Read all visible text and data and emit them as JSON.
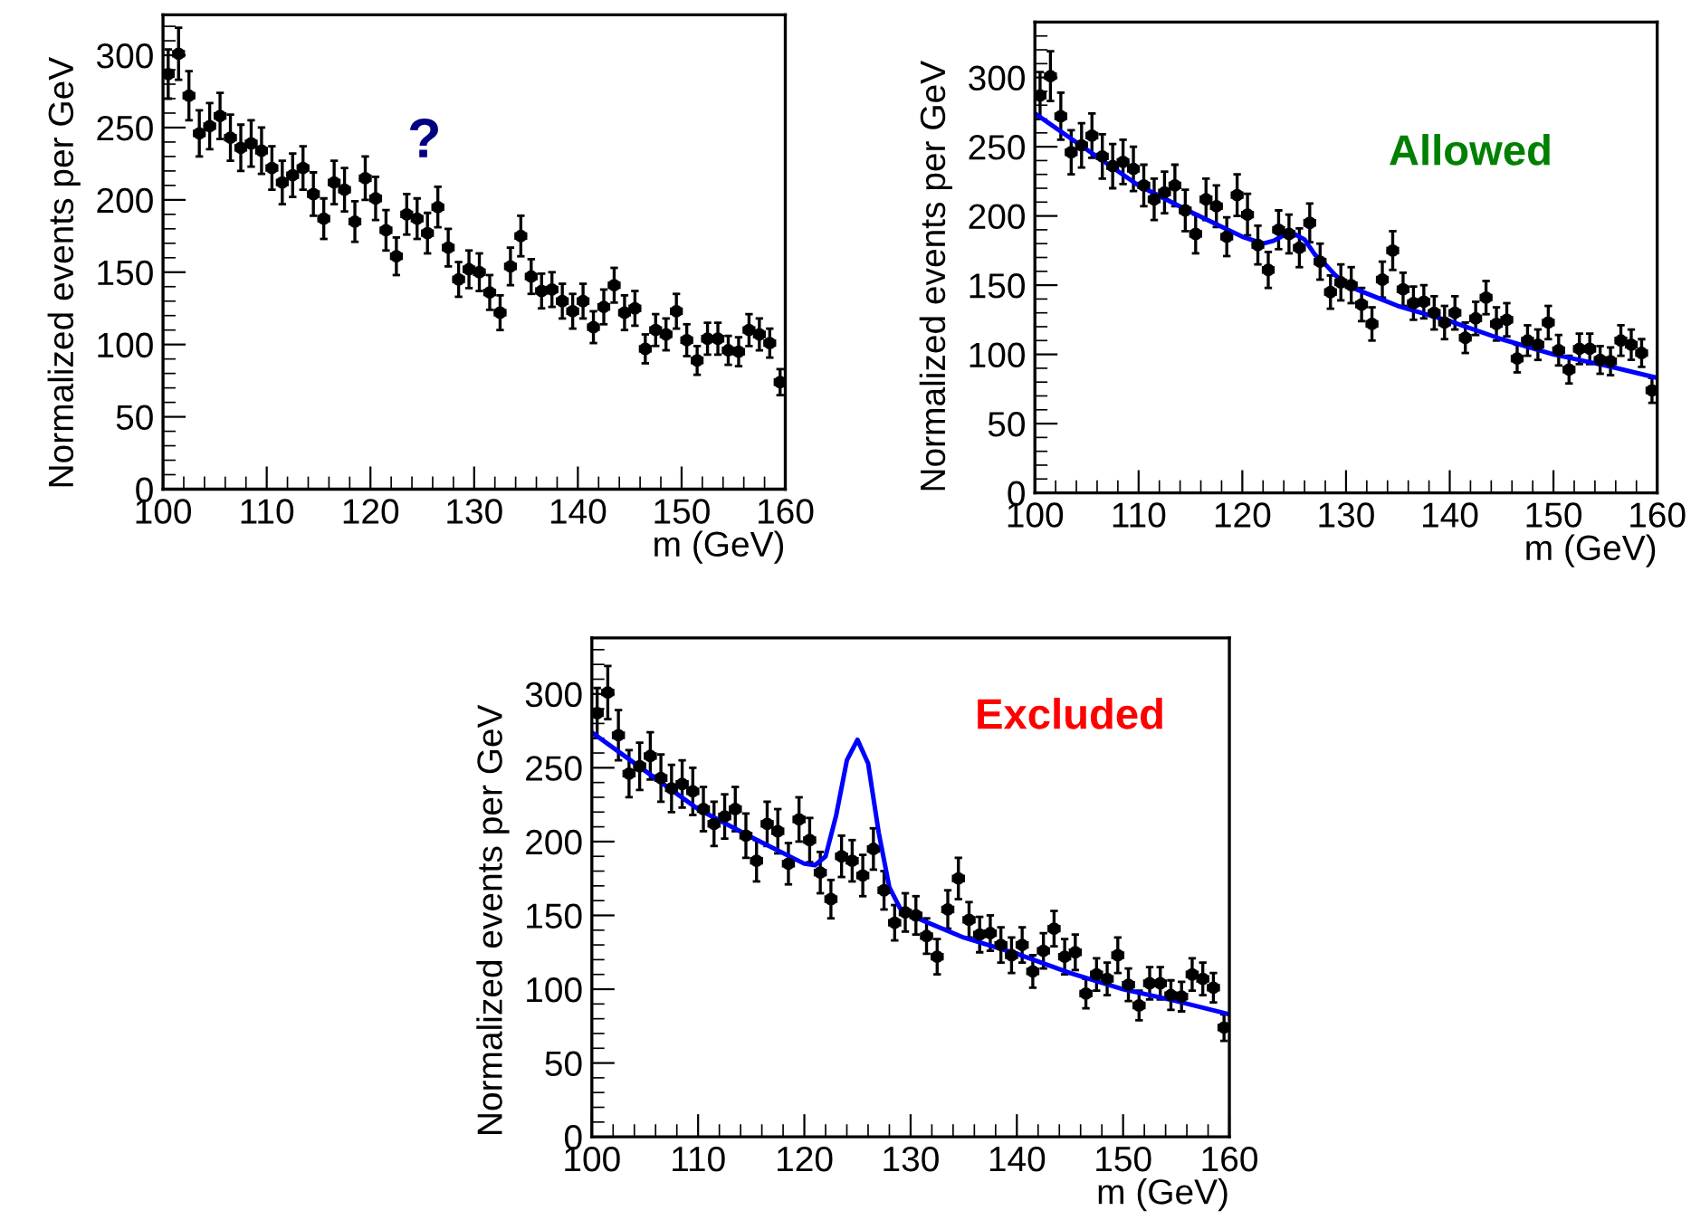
{
  "chart_data": [
    {
      "type": "scatter",
      "xlabel": "m (GeV)",
      "ylabel": "Normalized events per GeV",
      "annotations": [
        "?"
      ],
      "xlim": [
        100,
        160
      ],
      "ylim": [
        0,
        328
      ],
      "xticks": [
        100,
        110,
        120,
        130,
        140,
        150,
        160
      ],
      "yticks": [
        0,
        50,
        100,
        150,
        200,
        250,
        300
      ],
      "grid": false,
      "legend": false,
      "series": [
        {
          "marker": "circle",
          "color": "#000000",
          "x": [
            100.5,
            101.5,
            102.5,
            103.5,
            104.5,
            105.5,
            106.5,
            107.5,
            108.5,
            109.5,
            110.5,
            111.5,
            112.5,
            113.5,
            114.5,
            115.5,
            116.5,
            117.5,
            118.5,
            119.5,
            120.5,
            121.5,
            122.5,
            123.5,
            124.5,
            125.5,
            126.5,
            127.5,
            128.5,
            129.5,
            130.5,
            131.5,
            132.5,
            133.5,
            134.5,
            135.5,
            136.5,
            137.5,
            138.5,
            139.5,
            140.5,
            141.5,
            142.5,
            143.5,
            144.5,
            145.5,
            146.5,
            147.5,
            148.5,
            149.5,
            150.5,
            151.5,
            152.5,
            153.5,
            154.5,
            155.5,
            156.5,
            157.5,
            158.5,
            159.5
          ],
          "values": [
            287,
            301,
            272,
            246,
            251,
            258,
            243,
            236,
            239,
            234,
            222,
            212,
            217,
            222,
            204,
            187,
            212,
            207,
            185,
            215,
            201,
            179,
            161,
            190,
            187,
            177,
            195,
            167,
            145,
            152,
            150,
            136,
            122,
            154,
            175,
            147,
            137,
            138,
            130,
            123,
            130,
            112,
            126,
            141,
            122,
            125,
            97,
            110,
            107,
            123,
            103,
            89,
            104,
            104,
            96,
            95,
            110,
            107,
            101,
            74
          ],
          "errors": [
            17,
            18,
            17,
            16,
            16,
            16,
            16,
            16,
            16,
            16,
            15,
            15,
            15,
            15,
            15,
            14,
            15,
            15,
            14,
            15,
            15,
            14,
            13,
            14,
            14,
            14,
            14,
            13,
            12,
            13,
            13,
            12,
            12,
            13,
            14,
            12,
            12,
            12,
            12,
            12,
            12,
            11,
            12,
            12,
            12,
            12,
            10,
            11,
            11,
            12,
            11,
            10,
            11,
            11,
            10,
            10,
            11,
            11,
            10,
            9
          ],
          "xerrors": [
            0.5,
            0.5,
            0.5,
            0.5,
            0.5,
            0.5,
            0.5,
            0.5,
            0.5,
            0.5,
            0.5,
            0.5,
            0.5,
            0.5,
            0.5,
            0.5,
            0.5,
            0.5,
            0.5,
            0.5,
            0.5,
            0.5,
            0.5,
            0.5,
            0.5,
            0.5,
            0.5,
            0.5,
            0.5,
            0.5,
            0.5,
            0.5,
            0.5,
            0.5,
            0.5,
            0.5,
            0.5,
            0.5,
            0.5,
            0.5,
            0.5,
            0.5,
            0.5,
            0.5,
            0.5,
            0.5,
            0.5,
            0.5,
            0.5,
            0.5,
            0.5,
            0.5,
            0.5,
            0.5,
            0.5,
            0.5,
            0.5,
            0.5,
            0.5,
            0.5
          ]
        }
      ]
    },
    {
      "type": "scatter",
      "xlabel": "m (GeV)",
      "ylabel": "Normalized events per GeV",
      "annotations": [
        "Allowed"
      ],
      "xlim": [
        100,
        160
      ],
      "ylim": [
        0,
        340
      ],
      "xticks": [
        100,
        110,
        120,
        130,
        140,
        150,
        160
      ],
      "yticks": [
        0,
        50,
        100,
        150,
        200,
        250,
        300
      ],
      "grid": false,
      "legend": false,
      "series": [
        {
          "marker": "circle",
          "color": "#000000",
          "x": [
            100.5,
            101.5,
            102.5,
            103.5,
            104.5,
            105.5,
            106.5,
            107.5,
            108.5,
            109.5,
            110.5,
            111.5,
            112.5,
            113.5,
            114.5,
            115.5,
            116.5,
            117.5,
            118.5,
            119.5,
            120.5,
            121.5,
            122.5,
            123.5,
            124.5,
            125.5,
            126.5,
            127.5,
            128.5,
            129.5,
            130.5,
            131.5,
            132.5,
            133.5,
            134.5,
            135.5,
            136.5,
            137.5,
            138.5,
            139.5,
            140.5,
            141.5,
            142.5,
            143.5,
            144.5,
            145.5,
            146.5,
            147.5,
            148.5,
            149.5,
            150.5,
            151.5,
            152.5,
            153.5,
            154.5,
            155.5,
            156.5,
            157.5,
            158.5,
            159.5
          ],
          "values": [
            287,
            301,
            272,
            246,
            251,
            258,
            243,
            236,
            239,
            234,
            222,
            212,
            217,
            222,
            204,
            187,
            212,
            207,
            185,
            215,
            201,
            179,
            161,
            190,
            187,
            177,
            195,
            167,
            145,
            152,
            150,
            136,
            122,
            154,
            175,
            147,
            137,
            138,
            130,
            123,
            130,
            112,
            126,
            141,
            122,
            125,
            97,
            110,
            107,
            123,
            103,
            89,
            104,
            104,
            96,
            95,
            110,
            107,
            101,
            74
          ],
          "errors": [
            17,
            18,
            17,
            16,
            16,
            16,
            16,
            16,
            16,
            16,
            15,
            15,
            15,
            15,
            15,
            14,
            15,
            15,
            14,
            15,
            15,
            14,
            13,
            14,
            14,
            14,
            14,
            13,
            12,
            13,
            13,
            12,
            12,
            13,
            14,
            12,
            12,
            12,
            12,
            12,
            12,
            11,
            12,
            12,
            12,
            12,
            10,
            11,
            11,
            12,
            11,
            10,
            11,
            11,
            10,
            10,
            11,
            11,
            10,
            9
          ],
          "xerrors": [
            0.5,
            0.5,
            0.5,
            0.5,
            0.5,
            0.5,
            0.5,
            0.5,
            0.5,
            0.5,
            0.5,
            0.5,
            0.5,
            0.5,
            0.5,
            0.5,
            0.5,
            0.5,
            0.5,
            0.5,
            0.5,
            0.5,
            0.5,
            0.5,
            0.5,
            0.5,
            0.5,
            0.5,
            0.5,
            0.5,
            0.5,
            0.5,
            0.5,
            0.5,
            0.5,
            0.5,
            0.5,
            0.5,
            0.5,
            0.5,
            0.5,
            0.5,
            0.5,
            0.5,
            0.5,
            0.5,
            0.5,
            0.5,
            0.5,
            0.5,
            0.5,
            0.5,
            0.5,
            0.5,
            0.5,
            0.5,
            0.5,
            0.5,
            0.5,
            0.5
          ]
        },
        {
          "type": "line",
          "color": "#0000ff",
          "x": [
            100,
            105,
            110,
            115,
            120,
            122,
            123,
            124,
            125,
            126,
            127,
            128,
            129,
            130,
            135,
            140,
            145,
            150,
            155,
            160
          ],
          "values": [
            274,
            248,
            222,
            203,
            185,
            180,
            182,
            186,
            187,
            183,
            172,
            165,
            157,
            150,
            135,
            124,
            111,
            100,
            92,
            83
          ]
        }
      ]
    },
    {
      "type": "scatter",
      "xlabel": "m (GeV)",
      "ylabel": "Normalized events per GeV",
      "annotations": [
        "Excluded"
      ],
      "xlim": [
        100,
        160
      ],
      "ylim": [
        0,
        338
      ],
      "xticks": [
        100,
        110,
        120,
        130,
        140,
        150,
        160
      ],
      "yticks": [
        0,
        50,
        100,
        150,
        200,
        250,
        300
      ],
      "grid": false,
      "legend": false,
      "series": [
        {
          "marker": "circle",
          "color": "#000000",
          "x": [
            100.5,
            101.5,
            102.5,
            103.5,
            104.5,
            105.5,
            106.5,
            107.5,
            108.5,
            109.5,
            110.5,
            111.5,
            112.5,
            113.5,
            114.5,
            115.5,
            116.5,
            117.5,
            118.5,
            119.5,
            120.5,
            121.5,
            122.5,
            123.5,
            124.5,
            125.5,
            126.5,
            127.5,
            128.5,
            129.5,
            130.5,
            131.5,
            132.5,
            133.5,
            134.5,
            135.5,
            136.5,
            137.5,
            138.5,
            139.5,
            140.5,
            141.5,
            142.5,
            143.5,
            144.5,
            145.5,
            146.5,
            147.5,
            148.5,
            149.5,
            150.5,
            151.5,
            152.5,
            153.5,
            154.5,
            155.5,
            156.5,
            157.5,
            158.5,
            159.5
          ],
          "values": [
            287,
            301,
            272,
            246,
            251,
            258,
            243,
            236,
            239,
            234,
            222,
            212,
            217,
            222,
            204,
            187,
            212,
            207,
            185,
            215,
            201,
            179,
            161,
            190,
            187,
            177,
            195,
            167,
            145,
            152,
            150,
            136,
            122,
            154,
            175,
            147,
            137,
            138,
            130,
            123,
            130,
            112,
            126,
            141,
            122,
            125,
            97,
            110,
            107,
            123,
            103,
            89,
            104,
            104,
            96,
            95,
            110,
            107,
            101,
            74
          ],
          "errors": [
            17,
            18,
            17,
            16,
            16,
            16,
            16,
            16,
            16,
            16,
            15,
            15,
            15,
            15,
            15,
            14,
            15,
            15,
            14,
            15,
            15,
            14,
            13,
            14,
            14,
            14,
            14,
            13,
            12,
            13,
            13,
            12,
            12,
            13,
            14,
            12,
            12,
            12,
            12,
            12,
            12,
            11,
            12,
            12,
            12,
            12,
            10,
            11,
            11,
            12,
            11,
            10,
            11,
            11,
            10,
            10,
            11,
            11,
            10,
            9
          ],
          "xerrors": [
            0.5,
            0.5,
            0.5,
            0.5,
            0.5,
            0.5,
            0.5,
            0.5,
            0.5,
            0.5,
            0.5,
            0.5,
            0.5,
            0.5,
            0.5,
            0.5,
            0.5,
            0.5,
            0.5,
            0.5,
            0.5,
            0.5,
            0.5,
            0.5,
            0.5,
            0.5,
            0.5,
            0.5,
            0.5,
            0.5,
            0.5,
            0.5,
            0.5,
            0.5,
            0.5,
            0.5,
            0.5,
            0.5,
            0.5,
            0.5,
            0.5,
            0.5,
            0.5,
            0.5,
            0.5,
            0.5,
            0.5,
            0.5,
            0.5,
            0.5,
            0.5,
            0.5,
            0.5,
            0.5,
            0.5,
            0.5,
            0.5,
            0.5,
            0.5,
            0.5
          ]
        },
        {
          "type": "line",
          "color": "#0000ff",
          "x": [
            100,
            105,
            110,
            115,
            120,
            121,
            122,
            123,
            124,
            125,
            126,
            127,
            128,
            129,
            130,
            135,
            140,
            145,
            150,
            155,
            160
          ],
          "values": [
            274,
            248,
            222,
            203,
            185,
            184,
            190,
            218,
            255,
            269,
            253,
            206,
            169,
            155,
            150,
            135,
            124,
            111,
            100,
            92,
            83
          ]
        }
      ]
    }
  ]
}
